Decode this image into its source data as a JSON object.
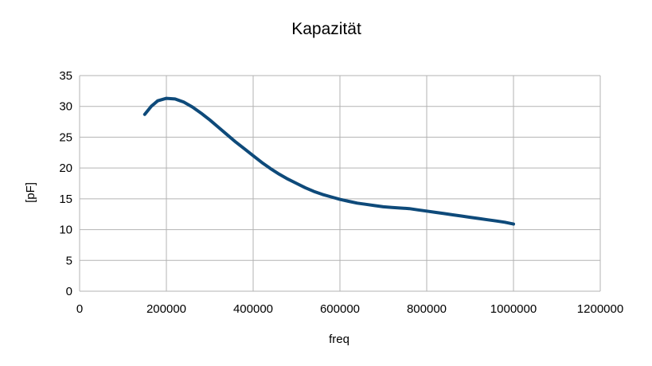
{
  "chart_data": {
    "type": "line",
    "title": "Kapazität",
    "xlabel": "freq",
    "ylabel": "[pF]",
    "xlim": [
      0,
      1200000
    ],
    "ylim": [
      0,
      35
    ],
    "xticks": [
      0,
      200000,
      400000,
      600000,
      800000,
      1000000,
      1200000
    ],
    "xtick_labels": [
      "0",
      "200000",
      "400000",
      "600000",
      "800000",
      "1000000",
      "1200000"
    ],
    "yticks": [
      0,
      5,
      10,
      15,
      20,
      25,
      30,
      35
    ],
    "ytick_labels": [
      "0",
      "5",
      "10",
      "15",
      "20",
      "25",
      "30",
      "35"
    ],
    "grid": true,
    "legend": "none",
    "series": [
      {
        "color": "#0e4a7a",
        "x": [
          150000,
          165000,
          180000,
          200000,
          220000,
          240000,
          260000,
          280000,
          300000,
          320000,
          340000,
          360000,
          380000,
          400000,
          420000,
          440000,
          460000,
          480000,
          500000,
          520000,
          540000,
          560000,
          580000,
          600000,
          620000,
          640000,
          660000,
          680000,
          700000,
          720000,
          740000,
          760000,
          780000,
          800000,
          820000,
          840000,
          860000,
          880000,
          900000,
          920000,
          940000,
          960000,
          980000,
          1000000
        ],
        "y": [
          28.7,
          30.0,
          30.9,
          31.3,
          31.2,
          30.7,
          29.9,
          28.9,
          27.8,
          26.6,
          25.4,
          24.2,
          23.1,
          22.0,
          20.9,
          19.9,
          19.0,
          18.2,
          17.5,
          16.8,
          16.2,
          15.7,
          15.3,
          14.9,
          14.6,
          14.3,
          14.1,
          13.9,
          13.7,
          13.6,
          13.5,
          13.4,
          13.2,
          13.0,
          12.8,
          12.6,
          12.4,
          12.2,
          12.0,
          11.8,
          11.6,
          11.4,
          11.2,
          10.9
        ]
      }
    ]
  }
}
